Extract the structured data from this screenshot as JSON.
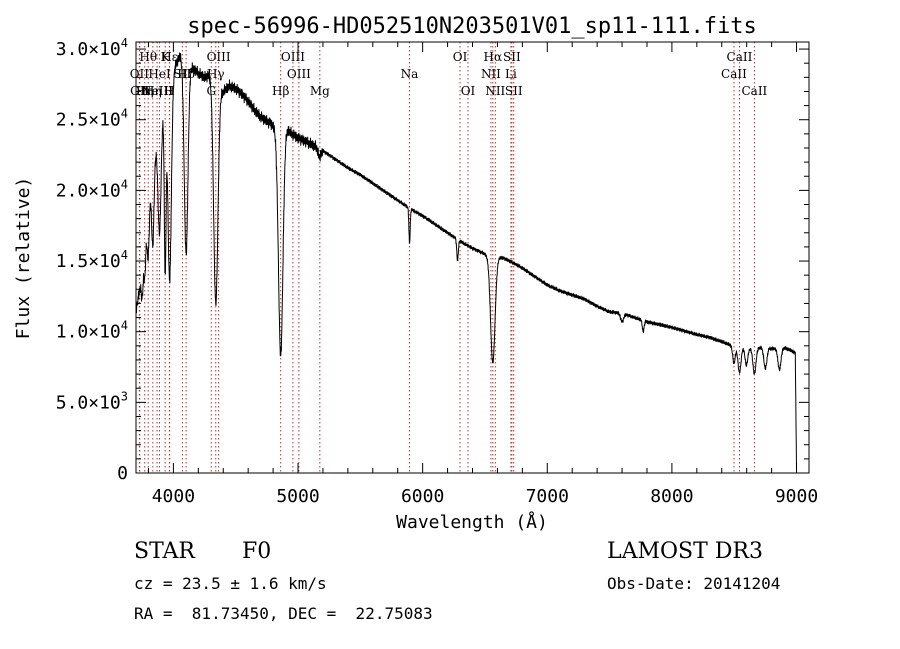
{
  "chart_data": {
    "type": "line",
    "title": "spec-56996-HD052510N203501V01_sp11-111.fits",
    "xlabel": "Wavelength (Å)",
    "ylabel": "Flux (relative)",
    "xlim": [
      3700,
      9100
    ],
    "ylim": [
      0,
      30500
    ],
    "x_ticks": [
      {
        "value": 4000,
        "label": "4000"
      },
      {
        "value": 5000,
        "label": "5000"
      },
      {
        "value": 6000,
        "label": "6000"
      },
      {
        "value": 7000,
        "label": "7000"
      },
      {
        "value": 8000,
        "label": "8000"
      },
      {
        "value": 9000,
        "label": "9000"
      }
    ],
    "y_ticks": [
      {
        "value": 0,
        "mant": "0",
        "exp": ""
      },
      {
        "value": 5000,
        "mant": "5.0×10",
        "exp": "3"
      },
      {
        "value": 10000,
        "mant": "1.0×10",
        "exp": "4"
      },
      {
        "value": 15000,
        "mant": "1.5×10",
        "exp": "4"
      },
      {
        "value": 20000,
        "mant": "2.0×10",
        "exp": "4"
      },
      {
        "value": 25000,
        "mant": "2.5×10",
        "exp": "4"
      },
      {
        "value": 30000,
        "mant": "3.0×10",
        "exp": "4"
      }
    ],
    "continuum": {
      "x": [
        3700,
        3730,
        3760,
        3800,
        3850,
        3900,
        3950,
        4000,
        4050,
        4100,
        4150,
        4200,
        4250,
        4300,
        4350,
        4400,
        4450,
        4500,
        4550,
        4600,
        4650,
        4700,
        4750,
        4800,
        4850,
        4900,
        4950,
        5000,
        5100,
        5200,
        5300,
        5400,
        5500,
        5600,
        5700,
        5800,
        5900,
        6000,
        6100,
        6200,
        6300,
        6400,
        6500,
        6550,
        6600,
        6650,
        6700,
        6800,
        6900,
        7000,
        7100,
        7200,
        7300,
        7400,
        7500,
        7600,
        7700,
        7800,
        7900,
        8000,
        8100,
        8200,
        8300,
        8400,
        8500,
        8550,
        8600,
        8650,
        8700,
        8750,
        8800,
        8850,
        8900,
        8950,
        8990,
        9000
      ],
      "y": [
        11500,
        13000,
        16000,
        19500,
        22500,
        25000,
        27000,
        28500,
        29500,
        29500,
        28700,
        28300,
        28000,
        28200,
        27300,
        27000,
        27400,
        27200,
        26800,
        26300,
        25700,
        25200,
        24900,
        24600,
        24300,
        24500,
        24000,
        23700,
        23300,
        22800,
        22200,
        21600,
        21100,
        20500,
        19900,
        19300,
        18700,
        18200,
        17600,
        17000,
        16400,
        15900,
        15500,
        15300,
        15300,
        15200,
        15000,
        14500,
        13900,
        13300,
        12900,
        12600,
        12300,
        11800,
        11400,
        11300,
        11000,
        10700,
        10500,
        10300,
        10050,
        9800,
        9600,
        9300,
        8950,
        8900,
        8850,
        8800,
        8850,
        8900,
        8800,
        8800,
        8850,
        8700,
        8500,
        200
      ]
    },
    "absorption_features": [
      {
        "center": 3750,
        "depth": 2500,
        "width": 8
      },
      {
        "center": 3771,
        "depth": 3000,
        "width": 8
      },
      {
        "center": 3798,
        "depth": 4000,
        "width": 9
      },
      {
        "center": 3835,
        "depth": 5500,
        "width": 10
      },
      {
        "center": 3889,
        "depth": 7500,
        "width": 12
      },
      {
        "center": 3934,
        "depth": 12000,
        "width": 7
      },
      {
        "center": 3970,
        "depth": 14000,
        "width": 14
      },
      {
        "center": 4102,
        "depth": 14000,
        "width": 15
      },
      {
        "center": 4340,
        "depth": 15500,
        "width": 17
      },
      {
        "center": 4861,
        "depth": 16000,
        "width": 18
      },
      {
        "center": 5172,
        "depth": 600,
        "width": 10
      },
      {
        "center": 5895,
        "depth": 2500,
        "width": 5
      },
      {
        "center": 6280,
        "depth": 1500,
        "width": 6
      },
      {
        "center": 6563,
        "depth": 7500,
        "width": 18
      },
      {
        "center": 7600,
        "depth": 600,
        "width": 12
      },
      {
        "center": 7770,
        "depth": 800,
        "width": 7
      },
      {
        "center": 8498,
        "depth": 1200,
        "width": 10
      },
      {
        "center": 8542,
        "depth": 1800,
        "width": 12
      },
      {
        "center": 8598,
        "depth": 1200,
        "width": 11
      },
      {
        "center": 8662,
        "depth": 1800,
        "width": 12
      },
      {
        "center": 8750,
        "depth": 1500,
        "width": 12
      },
      {
        "center": 8863,
        "depth": 1500,
        "width": 12
      }
    ],
    "line_markers": [
      {
        "x": 3727,
        "label": "OII",
        "row": 2
      },
      {
        "x": 3730,
        "label": "OII",
        "row": 3
      },
      {
        "x": 3770,
        "label": "Hη",
        "row": 3
      },
      {
        "x": 3798,
        "label": "Hθ",
        "row": 1
      },
      {
        "x": 3835,
        "label": "Hη",
        "row": 3
      },
      {
        "x": 3869,
        "label": "NeIII",
        "row": 3
      },
      {
        "x": 3889,
        "label": "HeI",
        "row": 2
      },
      {
        "x": 3934,
        "label": "K",
        "row": 1
      },
      {
        "x": 3968,
        "label": "H",
        "row": 3
      },
      {
        "x": 3970,
        "label": "Hε",
        "row": 1
      },
      {
        "x": 4072,
        "label": "SII",
        "row": 2
      },
      {
        "x": 4102,
        "label": "Hδ",
        "row": 2
      },
      {
        "x": 4304,
        "label": "G",
        "row": 3
      },
      {
        "x": 4340,
        "label": "Hγ",
        "row": 2
      },
      {
        "x": 4363,
        "label": "OIII",
        "row": 1
      },
      {
        "x": 4861,
        "label": "Hβ",
        "row": 3
      },
      {
        "x": 4959,
        "label": "OIII",
        "row": 1
      },
      {
        "x": 5007,
        "label": "OIII",
        "row": 2
      },
      {
        "x": 5175,
        "label": "Mg",
        "row": 3
      },
      {
        "x": 5894,
        "label": "Na",
        "row": 2
      },
      {
        "x": 6300,
        "label": "OI",
        "row": 1
      },
      {
        "x": 6364,
        "label": "OI",
        "row": 3
      },
      {
        "x": 6548,
        "label": "NII",
        "row": 2
      },
      {
        "x": 6563,
        "label": "Hα",
        "row": 1
      },
      {
        "x": 6583,
        "label": "NII",
        "row": 3
      },
      {
        "x": 6708,
        "label": "Li",
        "row": 2
      },
      {
        "x": 6716,
        "label": "SII",
        "row": 1
      },
      {
        "x": 6731,
        "label": "SII",
        "row": 3
      },
      {
        "x": 8498,
        "label": "CaII",
        "row": 2
      },
      {
        "x": 8542,
        "label": "CaII",
        "row": 1
      },
      {
        "x": 8662,
        "label": "CaII",
        "row": 3
      }
    ]
  },
  "info": {
    "class_label": "STAR",
    "subclass": "F0",
    "survey": "LAMOST DR3",
    "cz": "cz = 23.5 ± 1.6 km/s",
    "obs_date": "Obs-Date: 20141204",
    "radec": "RA =  81.73450, DEC =  22.75083"
  }
}
